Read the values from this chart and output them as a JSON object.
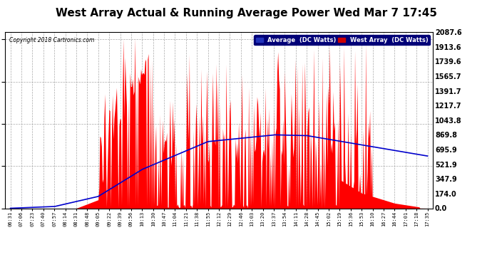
{
  "title": "West Array Actual & Running Average Power Wed Mar 7 17:45",
  "copyright": "Copyright 2018 Cartronics.com",
  "ylabel_right_ticks": [
    0.0,
    174.0,
    347.9,
    521.9,
    695.9,
    869.8,
    1043.8,
    1217.7,
    1391.7,
    1565.7,
    1739.6,
    1913.6,
    2087.6
  ],
  "ymax": 2087.6,
  "ymin": 0.0,
  "legend_labels": [
    "Average  (DC Watts)",
    "West Array  (DC Watts)"
  ],
  "background_color": "#ffffff",
  "plot_bg_color": "#ffffff",
  "grid_color": "#aaaaaa",
  "bar_color": "#ff0000",
  "line_color": "#0000cc",
  "title_fontsize": 11,
  "x_tick_labels": [
    "06:31",
    "07:06",
    "07:23",
    "07:40",
    "07:57",
    "08:14",
    "08:31",
    "08:48",
    "09:05",
    "09:22",
    "09:39",
    "09:56",
    "10:13",
    "10:30",
    "10:47",
    "11:04",
    "11:21",
    "11:38",
    "11:55",
    "12:12",
    "12:29",
    "12:46",
    "13:03",
    "13:20",
    "13:37",
    "13:54",
    "14:11",
    "14:28",
    "14:45",
    "15:02",
    "15:19",
    "15:36",
    "15:53",
    "16:10",
    "16:27",
    "16:44",
    "17:01",
    "17:18",
    "17:35"
  ]
}
